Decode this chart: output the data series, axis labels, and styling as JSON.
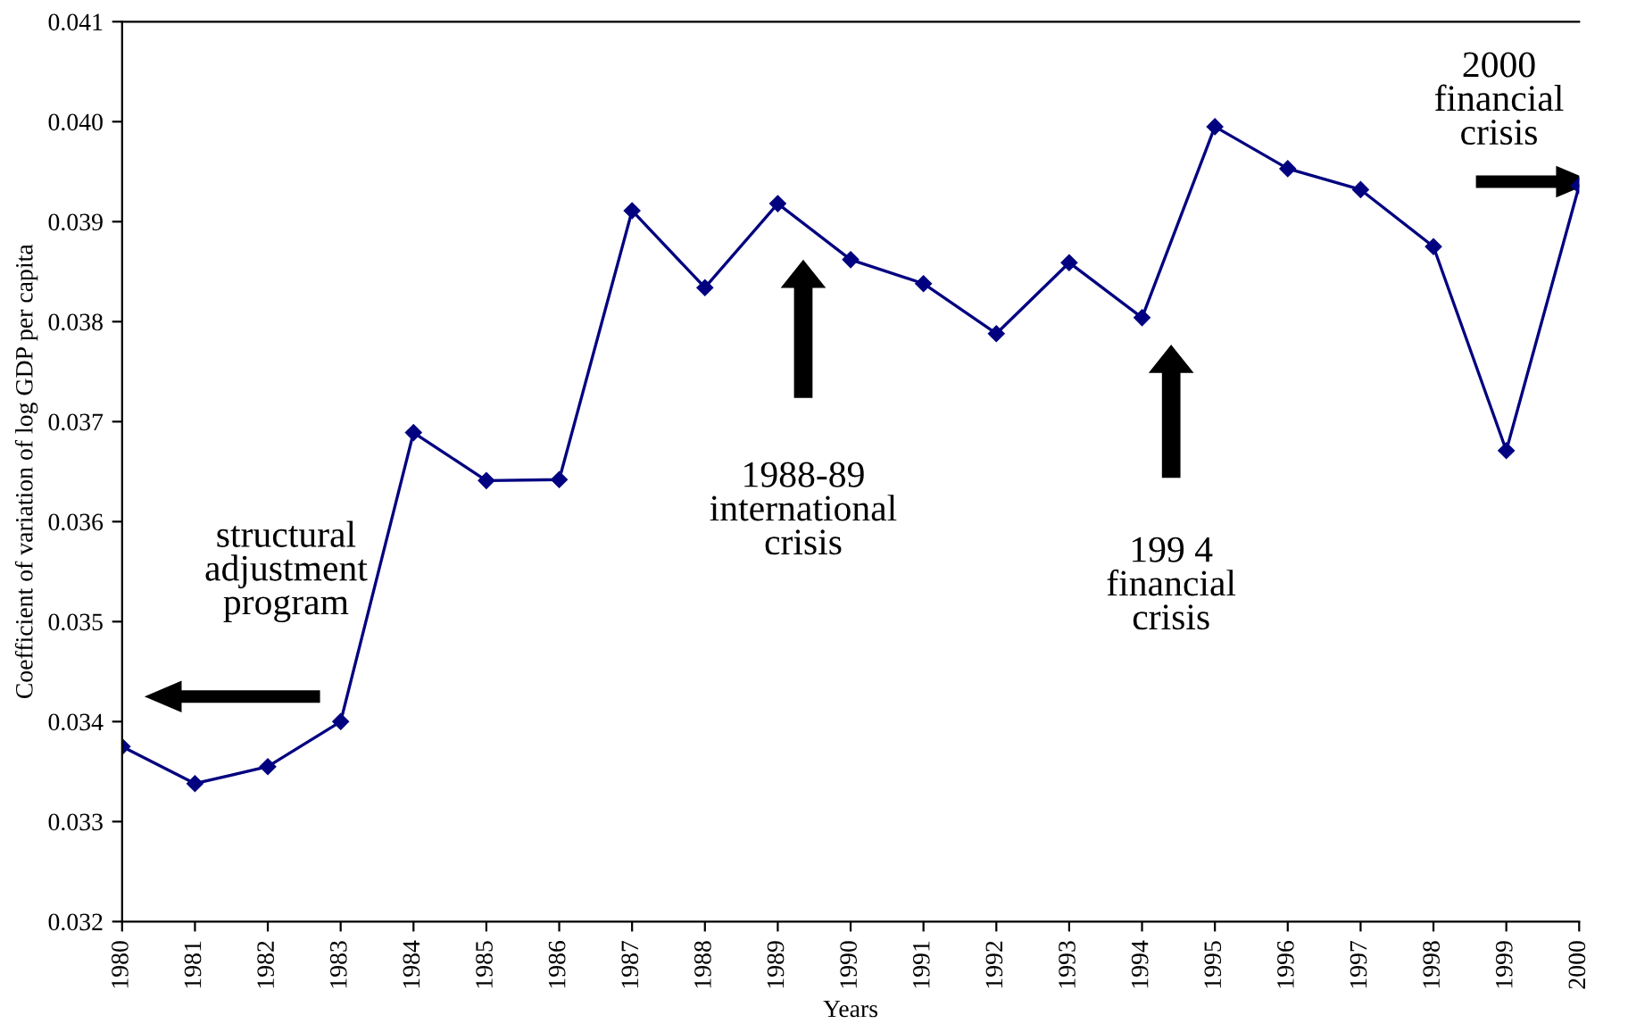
{
  "chart_data": {
    "type": "line",
    "categories": [
      "1980",
      "1981",
      "1982",
      "1983",
      "1984",
      "1985",
      "1986",
      "1987",
      "1988",
      "1989",
      "1990",
      "1991",
      "1992",
      "1993",
      "1994",
      "1995",
      "1996",
      "1997",
      "1998",
      "1999",
      "2000"
    ],
    "series": [
      {
        "color": "#000080",
        "values": [
          0.03375,
          0.03338,
          0.03355,
          0.034,
          0.03689,
          0.03641,
          0.03642,
          0.03911,
          0.03834,
          0.03918,
          0.03862,
          0.03838,
          0.03788,
          0.03859,
          0.03804,
          0.03995,
          0.03953,
          0.03932,
          0.03875,
          0.03671,
          0.03936
        ]
      }
    ],
    "xlabel": "Years",
    "ylabel": "Coefficient of variation of log GDP per capita",
    "ylim": [
      0.032,
      0.041
    ],
    "yticks": [
      {
        "value": 0.032,
        "label": "0.032"
      },
      {
        "value": 0.033,
        "label": "0.033"
      },
      {
        "value": 0.034,
        "label": "0.034"
      },
      {
        "value": 0.035,
        "label": "0.035"
      },
      {
        "value": 0.036,
        "label": "0.036"
      },
      {
        "value": 0.037,
        "label": "0.037"
      },
      {
        "value": 0.038,
        "label": "0.038"
      },
      {
        "value": 0.039,
        "label": "0.039"
      },
      {
        "value": 0.04,
        "label": "0.040"
      },
      {
        "value": 0.041,
        "label": "0.041"
      }
    ],
    "marker": "diamond",
    "annotations": [
      "structural\nadjustment\nprogram",
      "1988-89\ninternational\ncrisis",
      "199 4\nfinancial\ncrisis",
      "2000\nfinancial\ncrisis"
    ],
    "grid": false,
    "legend": false
  }
}
